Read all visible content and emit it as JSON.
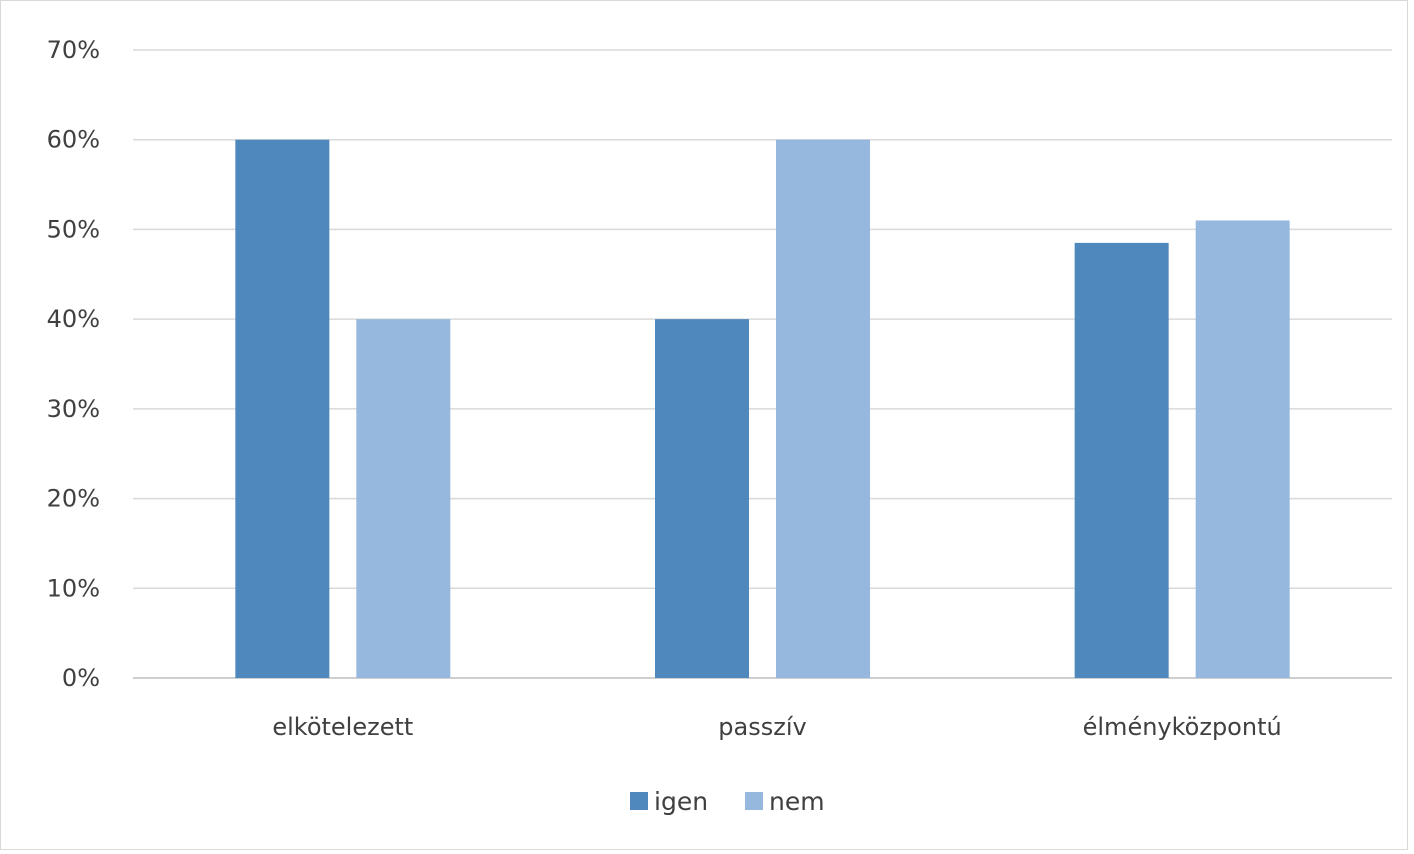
{
  "chart_data": {
    "type": "bar",
    "title": "",
    "xlabel": "",
    "ylabel": "",
    "categories": [
      "elkötelezett",
      "passzív",
      "élményközpontú"
    ],
    "series": [
      {
        "name": "igen",
        "color": "#4F88BC",
        "values": [
          60,
          40,
          48.5
        ]
      },
      {
        "name": "nem",
        "color": "#97B8DE",
        "values": [
          40,
          60,
          51
        ]
      }
    ],
    "ylim": [
      0,
      70
    ],
    "yticks": [
      0,
      10,
      20,
      30,
      40,
      50,
      60,
      70
    ],
    "ytick_format": "percent",
    "grid": true,
    "legend_position": "bottom"
  }
}
